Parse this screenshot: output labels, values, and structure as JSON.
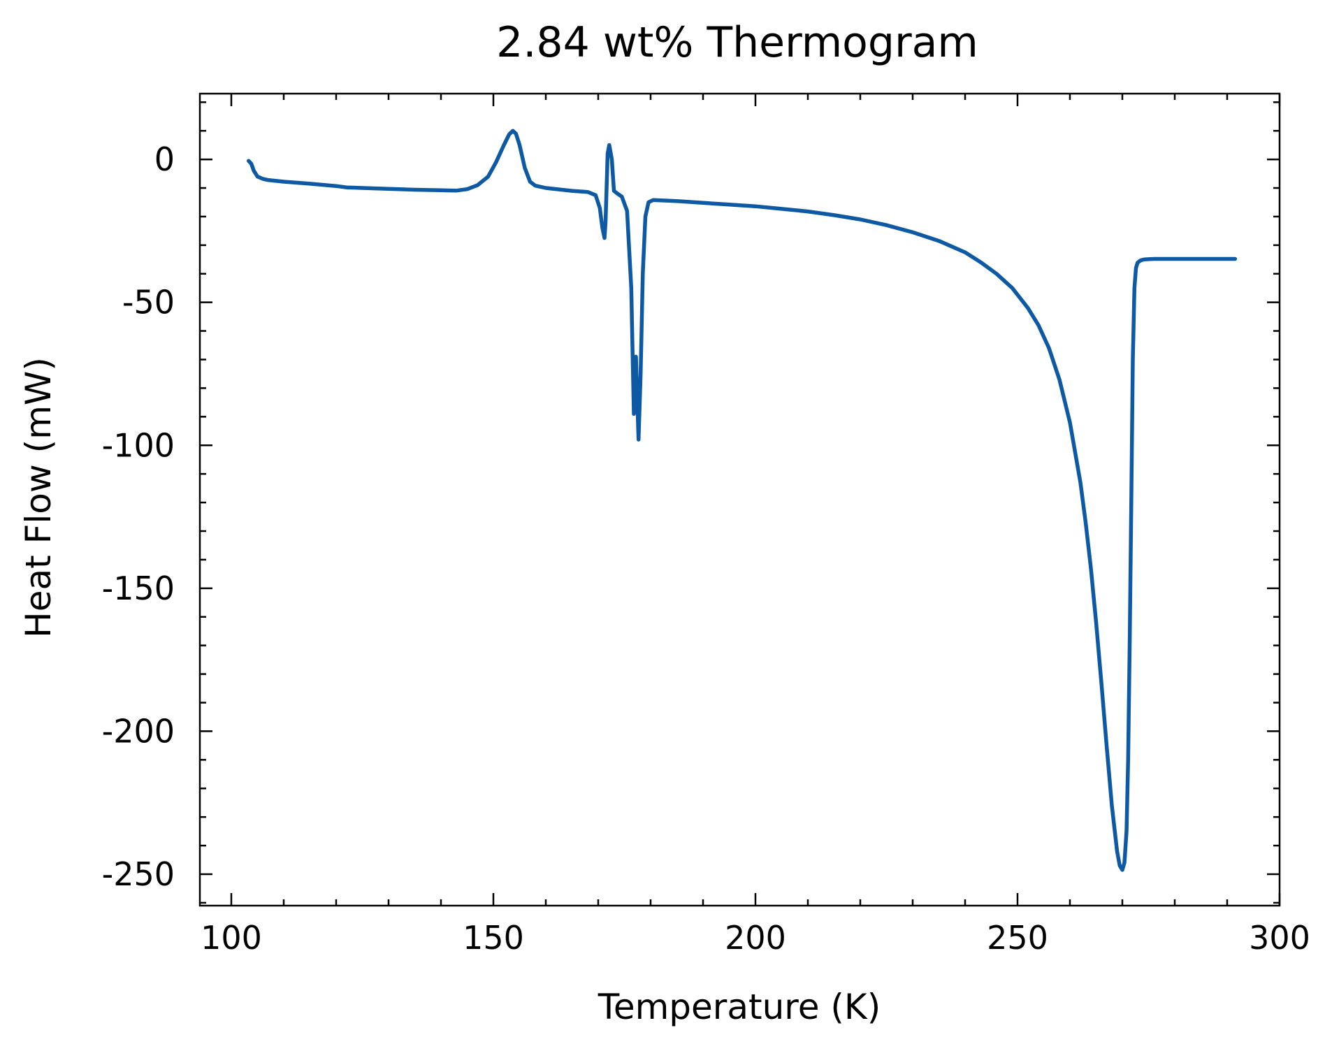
{
  "chart_data": {
    "type": "line",
    "title": "2.84 wt% Thermogram",
    "xlabel": "Temperature (K)",
    "ylabel": "Heat Flow (mW)",
    "xlim": [
      94,
      300
    ],
    "ylim": [
      -261,
      23
    ],
    "xticks": [
      100,
      150,
      200,
      250,
      300
    ],
    "yticks": [
      0,
      -50,
      -100,
      -150,
      -200,
      -250
    ],
    "xtick_labels": [
      "100",
      "150",
      "200",
      "250",
      "300"
    ],
    "ytick_labels": [
      "0",
      "-50",
      "-100",
      "-150",
      "-200",
      "-250"
    ],
    "grid": false,
    "line_color": "#0e59a4",
    "series": [
      {
        "x": [
          103.3,
          103.8,
          104.3,
          105,
          106,
          107,
          110,
          115,
          120,
          122,
          125,
          130,
          135,
          140,
          143,
          145,
          147,
          149,
          150.5,
          152,
          153,
          153.7,
          154.3,
          155,
          156,
          157,
          158,
          160,
          165,
          168,
          169.5,
          170.3,
          170.8,
          171.2,
          171.4,
          171.6,
          171.8,
          172.1,
          172.6,
          173,
          173.7,
          174.5,
          175.5,
          176.3,
          176.8,
          177.2,
          177.7,
          178.1,
          178.5,
          179,
          179.6,
          180.5,
          185,
          190,
          195,
          200,
          205,
          210,
          215,
          220,
          225,
          230,
          235,
          240,
          243,
          246,
          249,
          252,
          254,
          256,
          258,
          260,
          262,
          263,
          264,
          265,
          266,
          267,
          268,
          269,
          269.5,
          270,
          270.4,
          270.8,
          271.1,
          271.4,
          271.7,
          272,
          272.3,
          272.6,
          272.9,
          273.3,
          273.7,
          274.2,
          275,
          276,
          278,
          280,
          285,
          290,
          291.5
        ],
        "y": [
          -0.5,
          -1.5,
          -4,
          -6,
          -6.8,
          -7.2,
          -7.8,
          -8.5,
          -9.3,
          -9.8,
          -10,
          -10.3,
          -10.6,
          -10.8,
          -10.9,
          -10.4,
          -9,
          -6,
          -1,
          5,
          8.7,
          10,
          9,
          5,
          -3,
          -7.8,
          -9.2,
          -10,
          -11,
          -11.4,
          -12.5,
          -17,
          -24,
          -27.5,
          -22,
          -10,
          2,
          5,
          0,
          -11,
          -12,
          -13,
          -18,
          -45,
          -89,
          -69,
          -98,
          -75,
          -40,
          -20,
          -15,
          -14.2,
          -14.6,
          -15.2,
          -15.8,
          -16.4,
          -17.3,
          -18.2,
          -19.5,
          -21,
          -23,
          -25.5,
          -28.5,
          -32.5,
          -36,
          -40,
          -45,
          -52,
          -58,
          -66,
          -77,
          -92,
          -113,
          -127,
          -143,
          -162,
          -183,
          -205,
          -226,
          -242,
          -247,
          -248.5,
          -246,
          -235,
          -210,
          -170,
          -120,
          -70,
          -45,
          -38,
          -36.2,
          -35.5,
          -35.2,
          -35,
          -34.9,
          -34.8,
          -34.8,
          -34.8,
          -34.8,
          -34.8,
          -34.8
        ]
      }
    ]
  }
}
